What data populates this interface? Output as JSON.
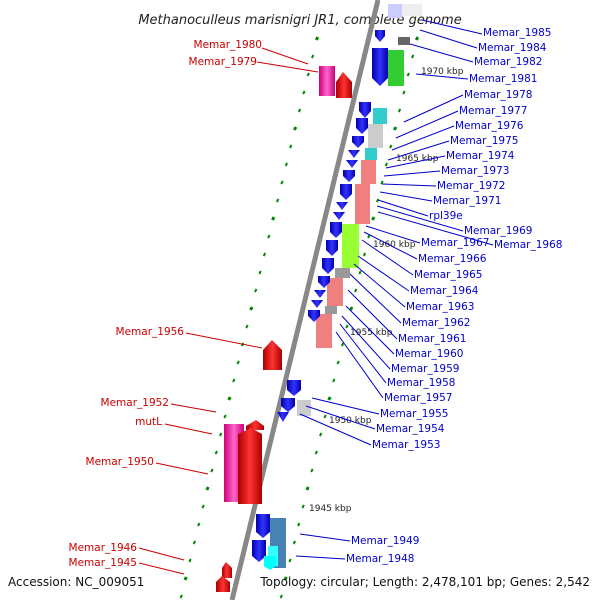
{
  "title": "Methanoculleus marisnigri JR1, complete genome",
  "accession": "Accession: NC_009051",
  "topology": "Topology: circular; Length: 2,478,101 bp; Genes: 2,542",
  "kbp_labels": [
    "1970 kbp",
    "1965 kbp",
    "1960 kbp",
    "1955 kbp",
    "1950 kbp",
    "1945 kbp"
  ],
  "left_labels": [
    "Memar_1980",
    "Memar_1979",
    "Memar_1956",
    "Memar_1952",
    "mutL",
    "Memar_1950",
    "Memar_1946",
    "Memar_1945"
  ],
  "right_labels": [
    "Memar_1985",
    "Memar_1984",
    "Memar_1982",
    "Memar_1981",
    "Memar_1978",
    "Memar_1977",
    "Memar_1976",
    "Memar_1975",
    "Memar_1974",
    "Memar_1973",
    "Memar_1972",
    "Memar_1971",
    "rpl39e",
    "Memar_1969",
    "Memar_1968",
    "Memar_1967",
    "Memar_1966",
    "Memar_1965",
    "Memar_1964",
    "Memar_1963",
    "Memar_1962",
    "Memar_1961",
    "Memar_1960",
    "Memar_1959",
    "Memar_1958",
    "Memar_1957",
    "Memar_1955",
    "Memar_1954",
    "Memar_1953",
    "Memar_1949",
    "Memar_1948"
  ],
  "colors": {
    "left_label": "#cc0000",
    "right_label": "#0000cc",
    "forward_gene": "#ff0000",
    "reverse_gene": "#0000ff",
    "rna_gene": "#ff66cc",
    "backbone": "#888888",
    "tick": "#008800",
    "cog_salmon": "#f08080",
    "cog_cyan": "#33cccc",
    "cog_lime": "#99ff33",
    "cog_green": "#33cc33",
    "cog_gray": "#999999",
    "cog_lightgray": "#cccccc",
    "cog_steelblue": "#4682b4"
  }
}
